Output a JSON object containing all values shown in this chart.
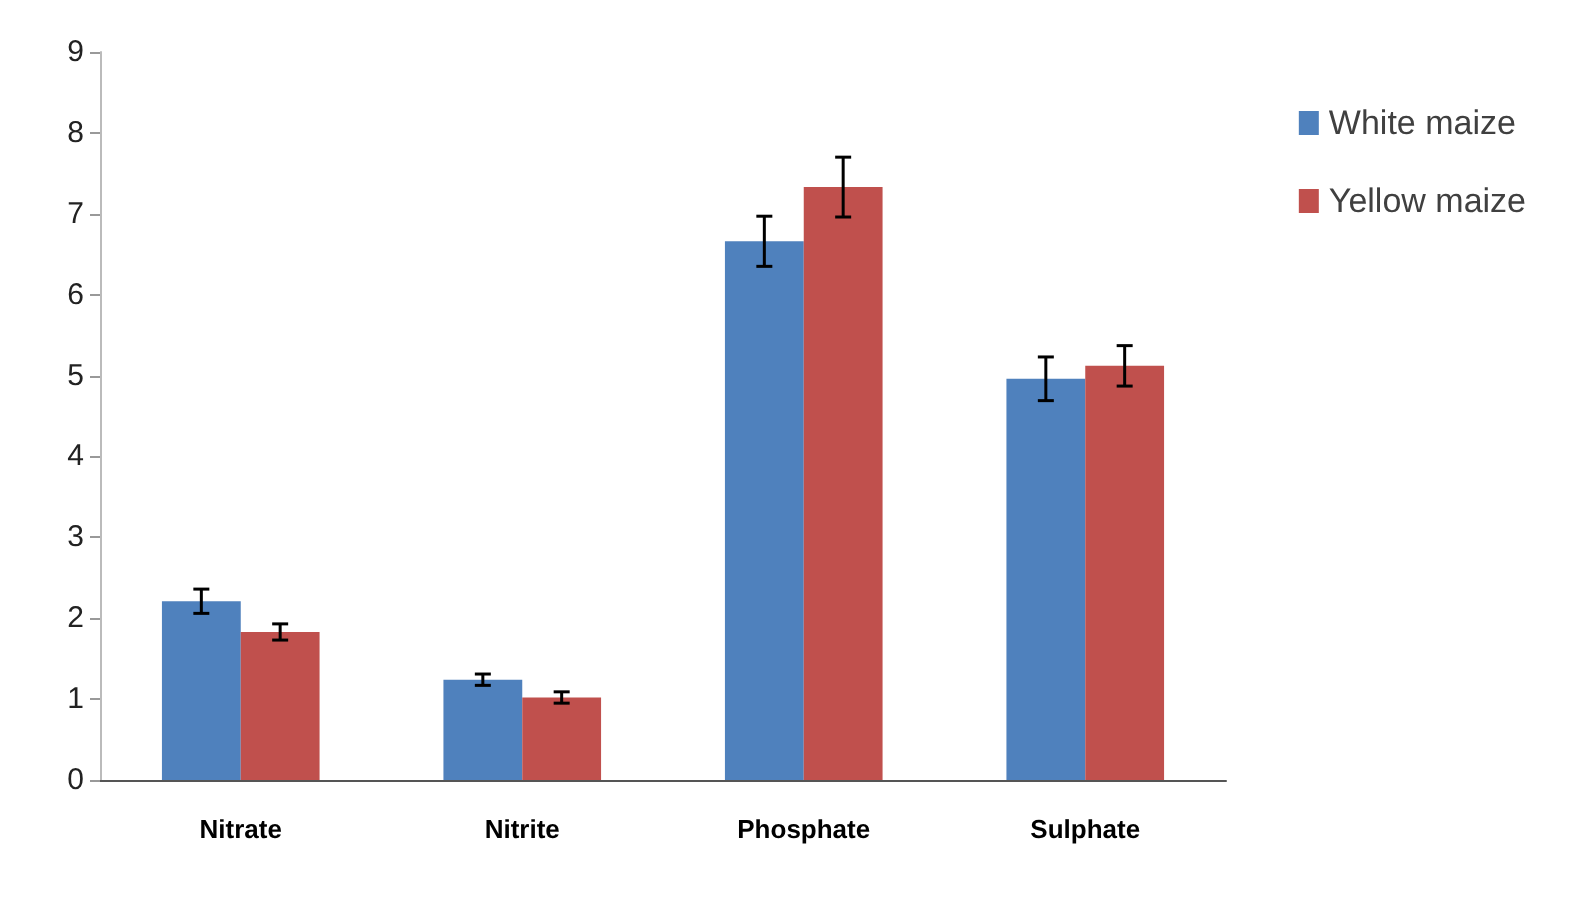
{
  "chart_data": {
    "type": "bar",
    "categories": [
      "Nitrate",
      "Nitrite",
      "Phosphate",
      "Sulphate"
    ],
    "series": [
      {
        "name": "White maize",
        "color": "#4f81bd",
        "values": [
          2.21,
          1.24,
          6.66,
          4.96
        ],
        "errors": [
          0.15,
          0.07,
          0.31,
          0.27
        ]
      },
      {
        "name": "Yellow maize",
        "color": "#c0504d",
        "values": [
          1.83,
          1.02,
          7.33,
          5.12
        ],
        "errors": [
          0.1,
          0.07,
          0.37,
          0.25
        ]
      }
    ],
    "ylim": [
      0,
      9
    ],
    "yticks": [
      0,
      1,
      2,
      3,
      4,
      5,
      6,
      7,
      8,
      9
    ],
    "grid": false,
    "legend": "top right"
  }
}
